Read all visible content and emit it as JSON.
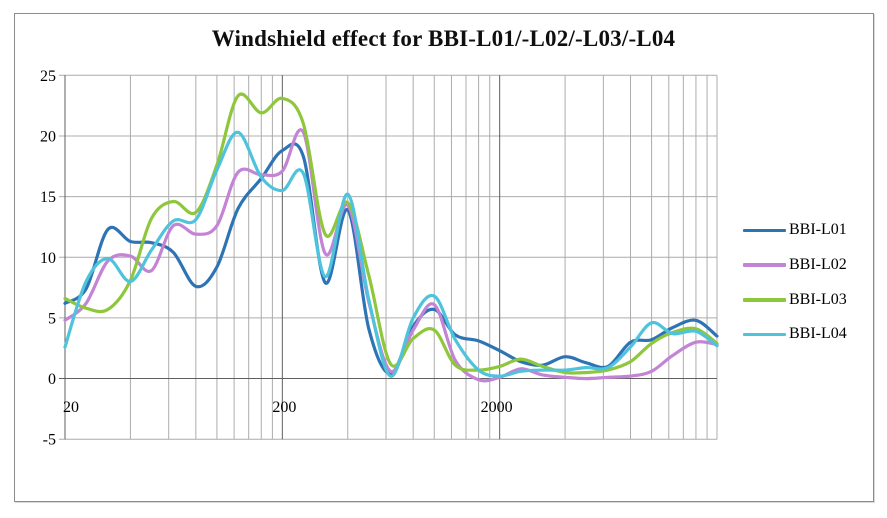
{
  "chart_data": {
    "type": "line",
    "title": "Windshield effect for BBI-L01/-L02/-L03/-L04",
    "x_scale": "log",
    "x_range": [
      20,
      20000
    ],
    "y_range": [
      -5,
      25
    ],
    "x_tick_values": [
      20,
      200,
      2000
    ],
    "x_tick_labels": [
      "20",
      "200",
      "2000"
    ],
    "y_ticks": [
      -5,
      0,
      5,
      10,
      15,
      20,
      25
    ],
    "y_tick_labels": [
      "-5",
      "0",
      "5",
      "10",
      "15",
      "20",
      "25"
    ],
    "grid": {
      "shown": true,
      "pattern": "log multiples of 2x10^n (20,40,...,200,400,...,2000,4000,...,20000)",
      "minor_color": "#ACACAC",
      "major_color": "#5F5F5F"
    },
    "legend_position": "right",
    "frequencies_hz": [
      20,
      25,
      31.5,
      40,
      50,
      63,
      80,
      100,
      125,
      160,
      200,
      250,
      315,
      400,
      500,
      630,
      800,
      1000,
      1250,
      1600,
      2000,
      2500,
      3150,
      4000,
      5000,
      6300,
      8000,
      10000,
      12500,
      16000,
      20000
    ],
    "series": [
      {
        "name": "BBI-L01",
        "color": "#2E74B5",
        "values": [
          6.2,
          7.4,
          12.3,
          11.3,
          11.2,
          10.4,
          7.6,
          9.2,
          14.0,
          16.5,
          18.8,
          18.3,
          7.9,
          13.9,
          4.1,
          0.4,
          4.3,
          5.7,
          3.6,
          3.1,
          2.3,
          1.4,
          1.1,
          1.8,
          1.3,
          1.0,
          3.0,
          3.2,
          4.2,
          4.8,
          3.5
        ]
      },
      {
        "name": "BBI-L02",
        "color": "#C384D6",
        "values": [
          4.8,
          6.2,
          9.7,
          10.1,
          8.9,
          12.6,
          11.9,
          12.6,
          17.0,
          16.8,
          17.1,
          20.3,
          10.3,
          14.3,
          6.3,
          0.6,
          4.0,
          6.1,
          1.5,
          -0.1,
          0.1,
          0.8,
          0.3,
          0.1,
          0.0,
          0.1,
          0.2,
          0.6,
          1.9,
          3.0,
          2.8
        ]
      },
      {
        "name": "BBI-L03",
        "color": "#8EC73C",
        "values": [
          6.6,
          5.8,
          5.7,
          8.1,
          13.2,
          14.6,
          13.7,
          17.6,
          23.3,
          21.9,
          23.1,
          21.0,
          11.9,
          14.5,
          8.5,
          1.2,
          3.3,
          4.0,
          1.1,
          0.7,
          1.0,
          1.6,
          1.0,
          0.5,
          0.5,
          0.7,
          1.4,
          2.9,
          3.8,
          4.1,
          2.9
        ]
      },
      {
        "name": "BBI-L04",
        "color": "#4EC3DB",
        "values": [
          2.6,
          8.0,
          9.9,
          8.0,
          10.6,
          13.0,
          13.1,
          17.2,
          20.3,
          16.6,
          15.5,
          16.9,
          8.4,
          15.2,
          6.5,
          0.2,
          5.0,
          6.8,
          3.2,
          0.7,
          0.2,
          0.6,
          0.7,
          0.7,
          0.9,
          0.9,
          2.6,
          4.6,
          3.7,
          3.9,
          2.7
        ]
      }
    ]
  }
}
